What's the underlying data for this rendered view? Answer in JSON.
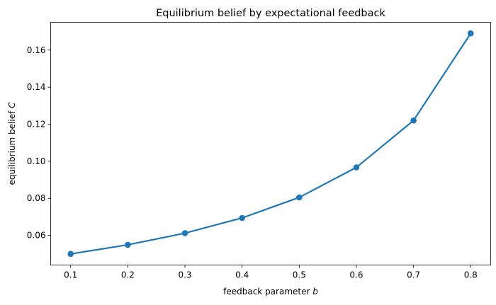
{
  "chart_data": {
    "type": "line",
    "title": "Equilibrium belief by expectational feedback",
    "xlabel": {
      "text": "feedback parameter ",
      "var": "b"
    },
    "ylabel": {
      "text": "equilibrium belief ",
      "var": "C"
    },
    "x": [
      0.1,
      0.2,
      0.3,
      0.4,
      0.5,
      0.6,
      0.7,
      0.8
    ],
    "series": [
      {
        "values": [
          0.05,
          0.0549,
          0.0612,
          0.0694,
          0.0805,
          0.0967,
          0.122,
          0.169
        ],
        "color": "#1f77b4",
        "marker": "circle"
      }
    ],
    "xlim": [
      0.065,
      0.835
    ],
    "ylim": [
      0.044,
      0.175
    ],
    "xticks": [
      "0.1",
      "0.2",
      "0.3",
      "0.4",
      "0.5",
      "0.6",
      "0.7",
      "0.8"
    ],
    "yticks": [
      "0.06",
      "0.08",
      "0.10",
      "0.12",
      "0.14",
      "0.16"
    ],
    "grid": false,
    "legend": "none"
  }
}
